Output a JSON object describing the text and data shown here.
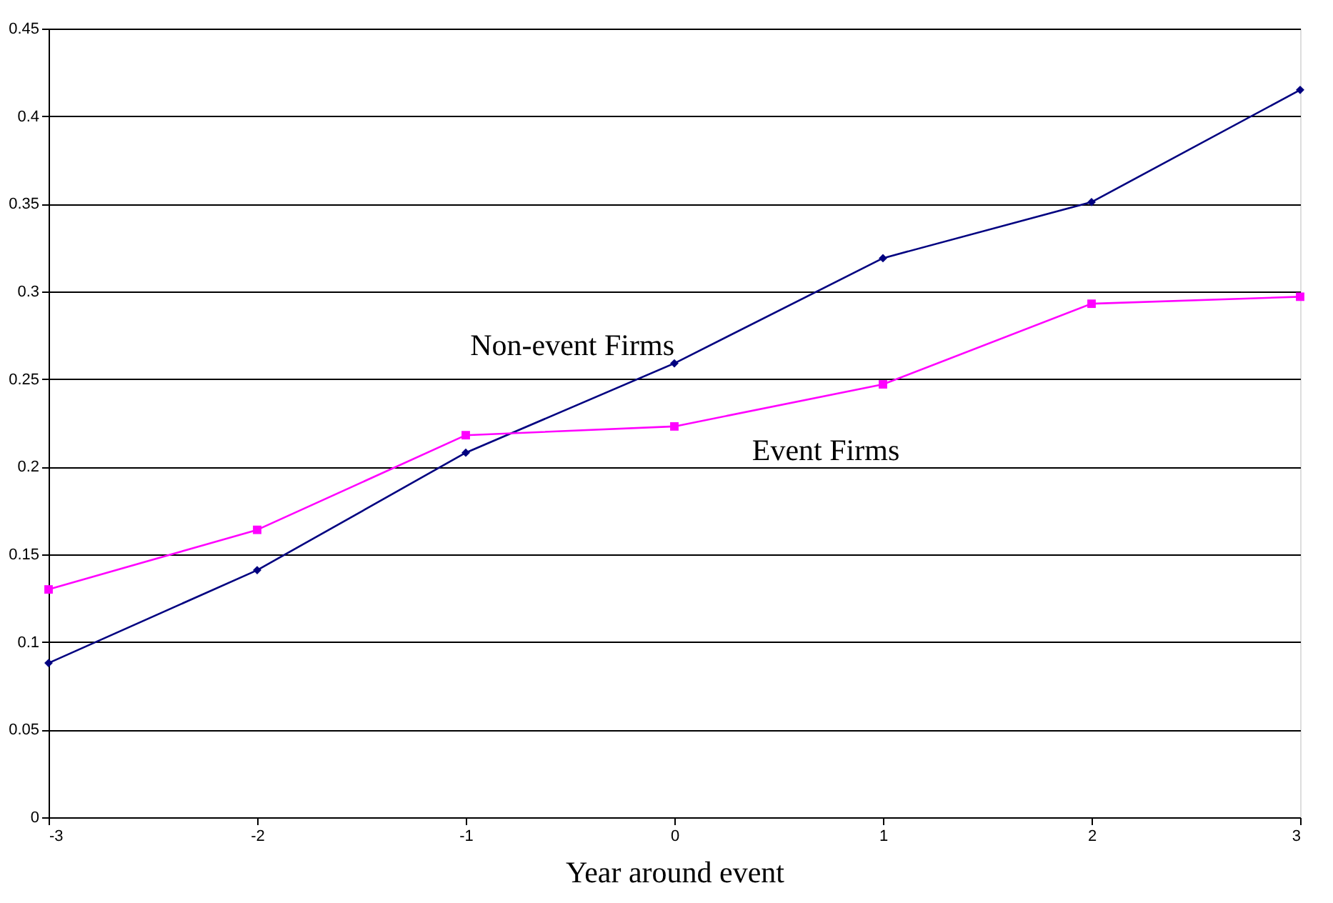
{
  "chart_data": {
    "type": "line",
    "xlabel": "Year around event",
    "x": [
      -3,
      -2,
      -1,
      0,
      1,
      2,
      3
    ],
    "series": [
      {
        "name": "Non-event Firms",
        "color": "#000080",
        "marker": "diamond",
        "values": [
          0.088,
          0.141,
          0.208,
          0.259,
          0.319,
          0.351,
          0.415
        ]
      },
      {
        "name": "Event Firms",
        "color": "#ff00ff",
        "marker": "square",
        "values": [
          0.13,
          0.164,
          0.218,
          0.223,
          0.247,
          0.293,
          0.297
        ]
      }
    ],
    "xlim": [
      -3,
      3
    ],
    "xticks": [
      -3,
      -2,
      -1,
      0,
      1,
      2,
      3
    ],
    "ylim": [
      0,
      0.45
    ],
    "yticks": [
      0,
      0.05,
      0.1,
      0.15,
      0.2,
      0.25,
      0.3,
      0.35,
      0.4,
      0.45
    ],
    "grid": "y",
    "line_style": "solid"
  }
}
